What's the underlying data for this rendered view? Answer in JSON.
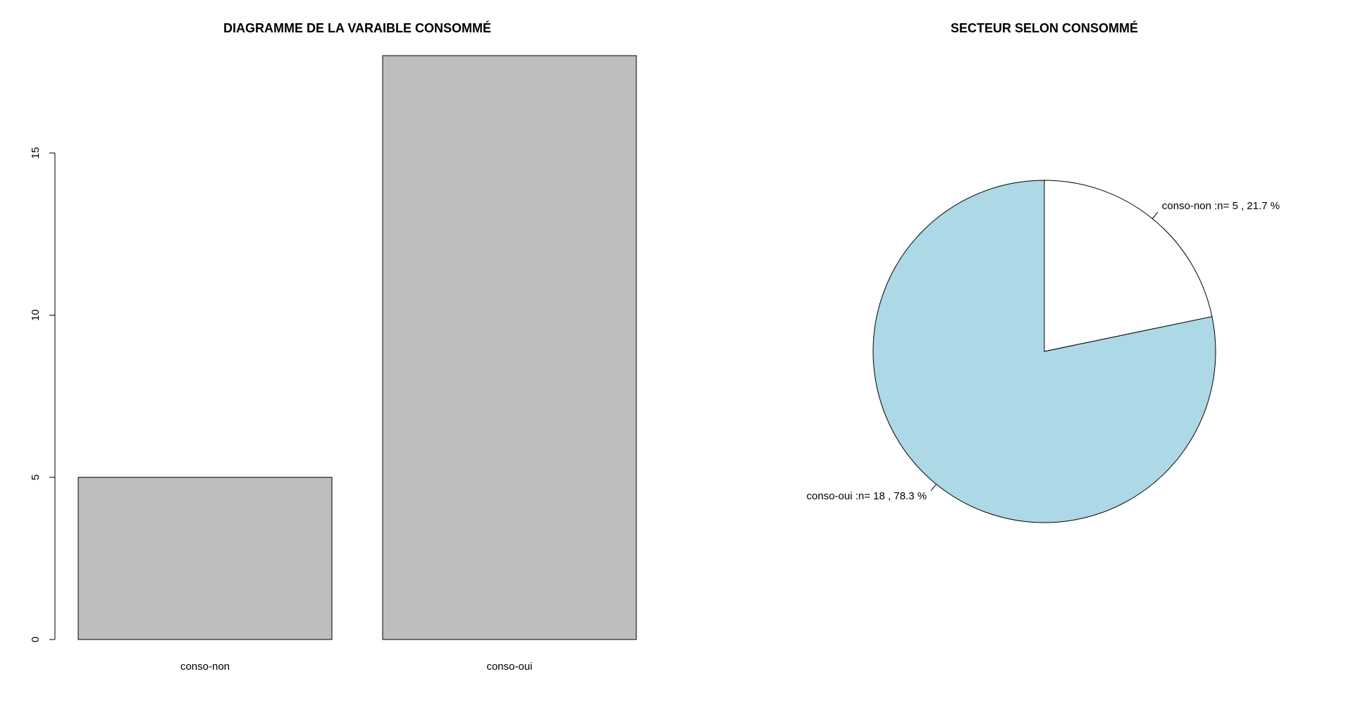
{
  "chart_data": [
    {
      "type": "bar",
      "title": "DIAGRAMME DE LA VARAIBLE CONSOMMÉ",
      "categories": [
        "conso-non",
        "conso-oui"
      ],
      "values": [
        5,
        18
      ],
      "yticks": [
        "0",
        "5",
        "10",
        "15"
      ],
      "ylim": [
        0,
        18
      ],
      "colors": {
        "bar": "#bebebe",
        "border": "#000000"
      },
      "grid": false,
      "xlabel": "",
      "ylabel": ""
    },
    {
      "type": "pie",
      "title": "SECTEUR SELON CONSOMMÉ",
      "labels": [
        "conso-non :n= 5 , 21.7 %",
        "conso-oui :n= 18 , 78.3 %"
      ],
      "values": [
        5,
        18
      ],
      "percent": [
        21.7,
        78.3
      ],
      "colors": [
        "#ffffff",
        "#add8e6"
      ],
      "direction": "clockwise",
      "start": "top"
    }
  ]
}
